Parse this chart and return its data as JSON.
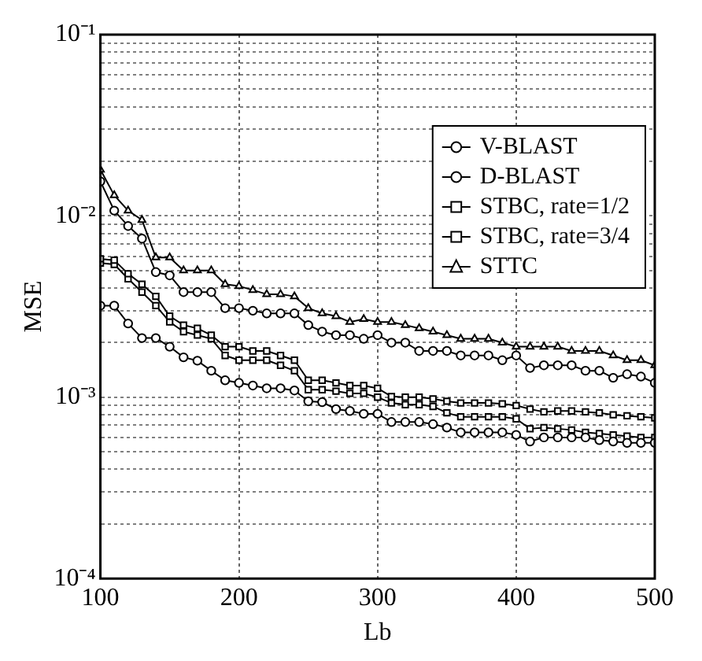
{
  "chart_data": {
    "type": "line",
    "xlabel": "Lb",
    "ylabel": "MSE",
    "log": "y",
    "grid": true,
    "legend": "top right",
    "xlim": [
      100,
      500
    ],
    "xticks": [
      100,
      200,
      300,
      400,
      500
    ],
    "ylim": [
      0.0001,
      0.1
    ],
    "yticks": [
      {
        "value": 0.0001,
        "label": "10⁻⁴"
      },
      {
        "value": 0.0002,
        "label": null
      },
      {
        "value": 0.0003,
        "label": null
      },
      {
        "value": 0.0004,
        "label": null
      },
      {
        "value": 0.0005,
        "label": null
      },
      {
        "value": 0.0006,
        "label": null
      },
      {
        "value": 0.0007,
        "label": null
      },
      {
        "value": 0.0008,
        "label": null
      },
      {
        "value": 0.0009,
        "label": null
      },
      {
        "value": 0.001,
        "label": "10⁻³"
      },
      {
        "value": 0.002,
        "label": null
      },
      {
        "value": 0.003,
        "label": null
      },
      {
        "value": 0.004,
        "label": null
      },
      {
        "value": 0.005,
        "label": null
      },
      {
        "value": 0.006,
        "label": null
      },
      {
        "value": 0.007,
        "label": null
      },
      {
        "value": 0.008,
        "label": null
      },
      {
        "value": 0.009,
        "label": null
      },
      {
        "value": 0.01,
        "label": "10⁻²"
      },
      {
        "value": 0.02,
        "label": null
      },
      {
        "value": 0.03,
        "label": null
      },
      {
        "value": 0.04,
        "label": null
      },
      {
        "value": 0.05,
        "label": null
      },
      {
        "value": 0.06,
        "label": null
      },
      {
        "value": 0.07,
        "label": null
      },
      {
        "value": 0.08,
        "label": null
      },
      {
        "value": 0.09,
        "label": null
      },
      {
        "value": 0.1,
        "label": "10⁻¹"
      }
    ],
    "x": [
      100,
      110,
      120,
      130,
      140,
      150,
      160,
      170,
      180,
      190,
      200,
      210,
      220,
      230,
      240,
      250,
      260,
      270,
      280,
      290,
      300,
      310,
      320,
      330,
      340,
      350,
      360,
      370,
      380,
      390,
      400,
      410,
      420,
      430,
      440,
      450,
      460,
      470,
      480,
      490,
      500
    ],
    "series": [
      {
        "name": "V-BLAST",
        "color": "#000000",
        "marker": "circle",
        "values": [
          0.0032,
          0.0032,
          0.00255,
          0.00212,
          0.00212,
          0.0019,
          0.00166,
          0.00159,
          0.0014,
          0.00124,
          0.0012,
          0.00116,
          0.00112,
          0.00112,
          0.00109,
          0.00095,
          0.00094,
          0.00086,
          0.00084,
          0.00081,
          0.00081,
          0.00073,
          0.00073,
          0.00073,
          0.00071,
          0.00068,
          0.00064,
          0.00064,
          0.00064,
          0.00064,
          0.00062,
          0.00057,
          0.0006,
          0.0006,
          0.0006,
          0.0006,
          0.00058,
          0.00057,
          0.00056,
          0.00056,
          0.00056
        ]
      },
      {
        "name": "D-BLAST",
        "color": "#000000",
        "marker": "circle",
        "values": [
          0.0155,
          0.0107,
          0.0088,
          0.0075,
          0.0049,
          0.0047,
          0.0038,
          0.0038,
          0.0038,
          0.0031,
          0.0031,
          0.003,
          0.0029,
          0.0029,
          0.0029,
          0.0025,
          0.0023,
          0.0022,
          0.0022,
          0.0021,
          0.0022,
          0.002,
          0.002,
          0.0018,
          0.0018,
          0.0018,
          0.0017,
          0.0017,
          0.0017,
          0.0016,
          0.0017,
          0.00145,
          0.0015,
          0.0015,
          0.0015,
          0.0014,
          0.0014,
          0.00128,
          0.00134,
          0.0013,
          0.0012
        ]
      },
      {
        "name": "STBC, rate=1/2",
        "color": "#000000",
        "marker": "square",
        "values": [
          0.0058,
          0.0057,
          0.0048,
          0.0042,
          0.0036,
          0.0028,
          0.0025,
          0.0024,
          0.0022,
          0.0019,
          0.0019,
          0.0018,
          0.0018,
          0.0017,
          0.0016,
          0.00124,
          0.00124,
          0.0012,
          0.00116,
          0.00116,
          0.00112,
          0.00101,
          0.001,
          0.001,
          0.00098,
          0.00095,
          0.00093,
          0.00093,
          0.00093,
          0.00092,
          0.0009,
          0.00086,
          0.00083,
          0.00084,
          0.00084,
          0.00083,
          0.00082,
          0.0008,
          0.00079,
          0.00078,
          0.00077
        ]
      },
      {
        "name": "STBC, rate=3/4",
        "color": "#000000",
        "marker": "square",
        "values": [
          0.0055,
          0.0054,
          0.0045,
          0.0038,
          0.0032,
          0.0026,
          0.0023,
          0.0022,
          0.0021,
          0.0017,
          0.0016,
          0.0016,
          0.0016,
          0.0015,
          0.0014,
          0.0011,
          0.0011,
          0.00108,
          0.00105,
          0.00105,
          0.001,
          0.00093,
          0.00091,
          0.00091,
          0.00089,
          0.00082,
          0.00078,
          0.00078,
          0.00078,
          0.00078,
          0.00076,
          0.00067,
          0.00068,
          0.00067,
          0.00066,
          0.00064,
          0.00063,
          0.00062,
          0.00061,
          0.0006,
          0.0006
        ]
      },
      {
        "name": "STTC",
        "color": "#000000",
        "marker": "triangle",
        "values": [
          0.018,
          0.013,
          0.0107,
          0.0095,
          0.0059,
          0.0059,
          0.005,
          0.005,
          0.005,
          0.0042,
          0.0041,
          0.0039,
          0.0037,
          0.0037,
          0.0036,
          0.0031,
          0.0029,
          0.0028,
          0.0026,
          0.0027,
          0.0026,
          0.0026,
          0.0025,
          0.0024,
          0.0023,
          0.0022,
          0.0021,
          0.0021,
          0.0021,
          0.002,
          0.0019,
          0.0019,
          0.0019,
          0.0019,
          0.0018,
          0.0018,
          0.0018,
          0.0017,
          0.0016,
          0.0016,
          0.0015
        ]
      }
    ]
  }
}
